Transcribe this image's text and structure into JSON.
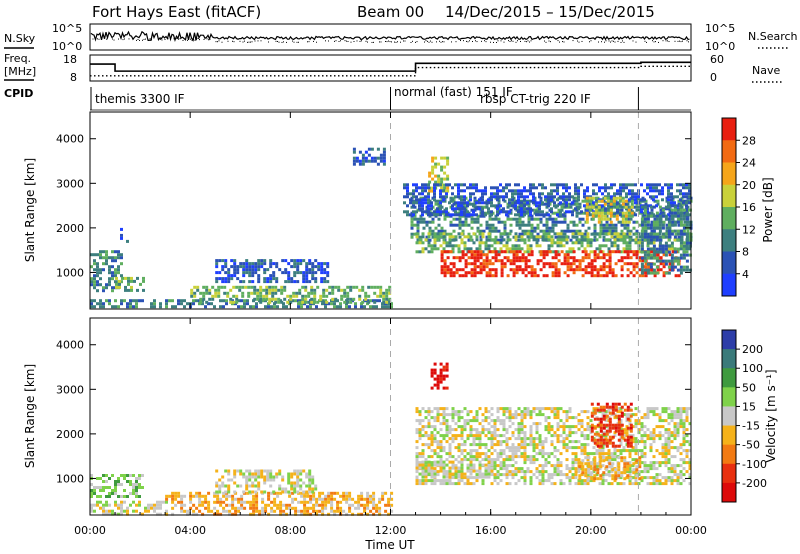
{
  "header": {
    "title": "Fort Hays East (fitACF)",
    "beam": "Beam 00",
    "date_range": "14/Dec/2015 – 15/Dec/2015"
  },
  "noise_panel": {
    "left_label": "N.Sky",
    "right_label": "N.Search",
    "left_ticks": [
      "10^5",
      "10^0"
    ],
    "right_ticks": [
      "10^5",
      "10^0"
    ]
  },
  "freq_panel": {
    "left_label_1": "Freq.",
    "left_label_2": "[MHz]",
    "right_label": "Nave",
    "left_ticks": [
      "18",
      "8"
    ],
    "right_ticks": [
      "60",
      "0"
    ],
    "freq_steps": [
      [
        0,
        14.5
      ],
      [
        1.0,
        11.8
      ],
      [
        13.0,
        14.8
      ],
      [
        22.0,
        15.2
      ],
      [
        24,
        15.2
      ]
    ],
    "nave_steps": [
      [
        0,
        12
      ],
      [
        1.0,
        12
      ],
      [
        13.0,
        31
      ],
      [
        22.0,
        34
      ],
      [
        24,
        34
      ]
    ]
  },
  "cpid": {
    "label": "CPID",
    "segments": [
      {
        "start": 0,
        "text": "themis 3300 IF"
      },
      {
        "start": 12.0,
        "text": "normal (fast) 151 IF"
      },
      {
        "start": 14.8,
        "text": "rbsp CT-trig 220 IF"
      }
    ],
    "dividers": [
      12.0,
      21.9
    ]
  },
  "axes": {
    "ylabel": "Slant Range [km]",
    "xlabel": "Time UT",
    "x_range": [
      0,
      24
    ],
    "y_range": [
      180,
      4600
    ],
    "x_tick_labels": [
      "00:00",
      "04:00",
      "08:00",
      "12:00",
      "16:00",
      "20:00",
      "00:00"
    ],
    "x_tick_hours": [
      0,
      4,
      8,
      12,
      16,
      20,
      24
    ],
    "y_tick_labels": [
      "1000",
      "2000",
      "3000",
      "4000"
    ],
    "y_tick_values": [
      1000,
      2000,
      3000,
      4000
    ]
  },
  "chart_data": [
    {
      "type": "heatmap",
      "name": "Power",
      "colorbar_label": "Power [dB]",
      "colorbar_ticks": [
        "4",
        "8",
        "12",
        "16",
        "20",
        "24",
        "28"
      ],
      "colorbar_range": [
        0,
        32
      ],
      "colors": [
        "#1f3fff",
        "#2b52b5",
        "#3d7f7f",
        "#5fae5f",
        "#c9d13a",
        "#f5a51a",
        "#f26a12",
        "#e81f10"
      ],
      "regions": [
        {
          "t0": 0.0,
          "t1": 1.3,
          "r0": 600,
          "r1": 1500,
          "level": 2
        },
        {
          "t0": 1.0,
          "t1": 2.1,
          "r0": 600,
          "r1": 900,
          "level": 3
        },
        {
          "t0": 1.2,
          "t1": 1.5,
          "r0": 1700,
          "r1": 2000,
          "level": 1
        },
        {
          "t0": 5.0,
          "t1": 9.5,
          "r0": 800,
          "r1": 1300,
          "level": 1
        },
        {
          "t0": 0.0,
          "t1": 12.0,
          "r0": 200,
          "r1": 400,
          "level": 2
        },
        {
          "t0": 4.0,
          "t1": 12.0,
          "r0": 300,
          "r1": 700,
          "level": 3
        },
        {
          "t0": 10.5,
          "t1": 11.8,
          "r0": 3400,
          "r1": 3800,
          "level": 1
        },
        {
          "t0": 12.8,
          "t1": 24.0,
          "r0": 1700,
          "r1": 2700,
          "level": 2
        },
        {
          "t0": 13.5,
          "t1": 14.3,
          "r0": 2800,
          "r1": 3600,
          "level": 4
        },
        {
          "t0": 13.0,
          "t1": 24.0,
          "r0": 1450,
          "r1": 1900,
          "level": 3
        },
        {
          "t0": 14.0,
          "t1": 23.5,
          "r0": 900,
          "r1": 1500,
          "level": 7
        },
        {
          "t0": 12.5,
          "t1": 24.0,
          "r0": 2300,
          "r1": 3000,
          "level": 1
        },
        {
          "t0": 19.8,
          "t1": 21.6,
          "r0": 2100,
          "r1": 2700,
          "level": 4
        },
        {
          "t0": 22.0,
          "t1": 24.0,
          "r0": 1000,
          "r1": 2500,
          "level": 2
        }
      ]
    },
    {
      "type": "heatmap",
      "name": "Velocity",
      "colorbar_label": "Velocity [m s⁻¹]",
      "colorbar_ticks": [
        "200",
        "100",
        "50",
        "15",
        "-15",
        "-50",
        "-100",
        "-200"
      ],
      "colorbar_range": [
        -250,
        250
      ],
      "colors": [
        "#2d3da8",
        "#3a7a7a",
        "#3f9a3f",
        "#7fd24a",
        "#c8c8c8",
        "#f5b21a",
        "#f27a12",
        "#e8300f",
        "#dd0a0a"
      ],
      "regions": [
        {
          "t0": 0.0,
          "t1": 2.1,
          "r0": 600,
          "r1": 1100,
          "level": 3
        },
        {
          "t0": 0.0,
          "t1": 3.0,
          "r0": 200,
          "r1": 500,
          "level": 4
        },
        {
          "t0": 3.0,
          "t1": 12.0,
          "r0": 200,
          "r1": 700,
          "level": 5
        },
        {
          "t0": 5.0,
          "t1": 9.0,
          "r0": 700,
          "r1": 1200,
          "level": 4
        },
        {
          "t0": 13.0,
          "t1": 24.0,
          "r0": 900,
          "r1": 2600,
          "level": 4
        },
        {
          "t0": 13.6,
          "t1": 14.2,
          "r0": 3000,
          "r1": 3600,
          "level": 8
        },
        {
          "t0": 20.0,
          "t1": 21.6,
          "r0": 1700,
          "r1": 2700,
          "level": 7
        },
        {
          "t0": 19.5,
          "t1": 22.0,
          "r0": 1000,
          "r1": 1500,
          "level": 5
        },
        {
          "t0": 13.0,
          "t1": 16.0,
          "r0": 1000,
          "r1": 1400,
          "level": 4
        }
      ]
    }
  ]
}
